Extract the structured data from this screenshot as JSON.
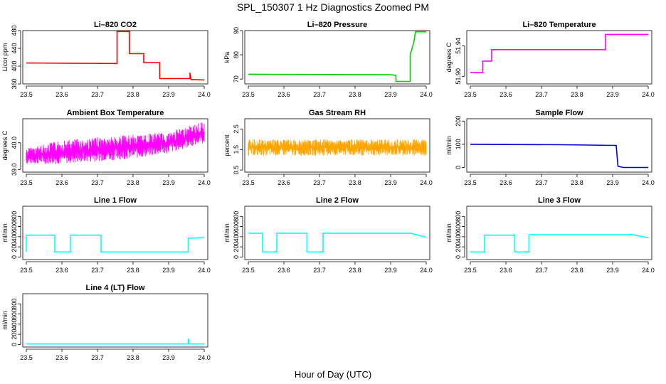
{
  "figure": {
    "title": "SPL_150307  1 Hz Diagnostics Zoomed PM",
    "xlabel": "Hour of Day (UTC)"
  },
  "chart_data": [
    {
      "type": "line",
      "title": "Li–820 CO2",
      "ylabel": "Licor ppm",
      "color": "#ff0000",
      "xlim": [
        23.5,
        24.0
      ],
      "ylim": [
        360,
        480
      ],
      "xticks": [
        "23.5",
        "23.6",
        "23.7",
        "23.8",
        "23.9",
        "24.0"
      ],
      "yticks": [
        "360",
        "400",
        "440",
        "480"
      ],
      "x": [
        23.5,
        23.755,
        23.755,
        23.79,
        23.79,
        23.83,
        23.83,
        23.875,
        23.875,
        23.96,
        23.96,
        23.963,
        23.963,
        24.0
      ],
      "y": [
        407,
        406,
        478,
        478,
        428,
        428,
        408,
        408,
        372,
        372,
        385,
        370,
        370,
        369
      ]
    },
    {
      "type": "line",
      "title": "Li–820 Pressure",
      "ylabel": "kPa",
      "color": "#00cc00",
      "xlim": [
        23.5,
        24.0
      ],
      "ylim": [
        68,
        90
      ],
      "xticks": [
        "23.5",
        "23.6",
        "23.7",
        "23.8",
        "23.9",
        "24.0"
      ],
      "yticks": [
        "70",
        "80",
        "90"
      ],
      "x": [
        23.5,
        23.9,
        23.915,
        23.915,
        23.955,
        23.955,
        23.965,
        23.97,
        24.0
      ],
      "y": [
        72,
        71.8,
        71.5,
        69,
        69,
        80,
        85,
        89.5,
        89.5
      ]
    },
    {
      "type": "line",
      "title": "Li–820 Temperature",
      "ylabel": "degrees C",
      "color": "#ff00ff",
      "xlim": [
        23.5,
        24.0
      ],
      "ylim": [
        51.89,
        51.96
      ],
      "xticks": [
        "23.5",
        "23.6",
        "23.7",
        "23.8",
        "23.9",
        "24.0"
      ],
      "yticks": [
        "51.90",
        "51.94"
      ],
      "x": [
        23.5,
        23.535,
        23.535,
        23.56,
        23.56,
        23.88,
        23.88,
        24.0
      ],
      "y": [
        51.905,
        51.905,
        51.92,
        51.92,
        51.935,
        51.935,
        51.955,
        51.955
      ]
    },
    {
      "type": "line",
      "title": "Ambient Box Temperature",
      "ylabel": "degrees C",
      "color": "#ff00ff",
      "xlim": [
        23.5,
        24.0
      ],
      "ylim": [
        38.9,
        40.9
      ],
      "xticks": [
        "23.5",
        "23.6",
        "23.7",
        "23.8",
        "23.9",
        "24.0"
      ],
      "yticks": [
        "39.0",
        "40.0"
      ],
      "x": [
        23.5,
        23.6,
        23.7,
        23.8,
        23.9,
        23.95,
        24.0
      ],
      "low": [
        39.2,
        39.2,
        39.3,
        39.4,
        39.6,
        39.8,
        40.0
      ],
      "high": [
        39.8,
        40.1,
        40.2,
        40.3,
        40.4,
        40.6,
        40.8
      ]
    },
    {
      "type": "line",
      "title": "Gas Stream RH",
      "ylabel": "percent",
      "color": "#ffa500",
      "xlim": [
        23.5,
        24.0
      ],
      "ylim": [
        0.4,
        3.0
      ],
      "xticks": [
        "23.5",
        "23.6",
        "23.7",
        "23.8",
        "23.9",
        "24.0"
      ],
      "yticks": [
        "0.5",
        "1.5",
        "2.5"
      ],
      "x": [
        23.5,
        24.0
      ],
      "low": [
        1.2,
        1.2
      ],
      "high": [
        2.0,
        2.0
      ]
    },
    {
      "type": "line",
      "title": "Sample Flow",
      "ylabel": "ml/min",
      "color": "#0000cc",
      "xlim": [
        23.5,
        24.0
      ],
      "ylim": [
        -20,
        210
      ],
      "xticks": [
        "23.5",
        "23.6",
        "23.7",
        "23.8",
        "23.9",
        "24.0"
      ],
      "yticks": [
        "0",
        "100",
        "200"
      ],
      "x": [
        23.5,
        23.75,
        23.91,
        23.915,
        23.93,
        24.0
      ],
      "y": [
        100,
        98,
        95,
        5,
        0,
        0
      ]
    },
    {
      "type": "line",
      "title": "Line 1 Flow",
      "ylabel": "ml/min",
      "color": "#00ffff",
      "xlim": [
        23.5,
        24.0
      ],
      "ylim": [
        -50,
        1000
      ],
      "xticks": [
        "23.5",
        "23.6",
        "23.7",
        "23.8",
        "23.9",
        "24.0"
      ],
      "yticks": [
        "0",
        "200",
        "400",
        "600",
        "800"
      ],
      "x": [
        23.5,
        23.5,
        23.58,
        23.58,
        23.625,
        23.625,
        23.71,
        23.71,
        23.955,
        23.955,
        24.0
      ],
      "y": [
        100,
        430,
        430,
        100,
        100,
        430,
        430,
        100,
        100,
        370,
        380
      ]
    },
    {
      "type": "line",
      "title": "Line 2 Flow",
      "ylabel": "ml/min",
      "color": "#00ffff",
      "xlim": [
        23.5,
        24.0
      ],
      "ylim": [
        -50,
        1000
      ],
      "xticks": [
        "23.5",
        "23.6",
        "23.7",
        "23.8",
        "23.9",
        "24.0"
      ],
      "yticks": [
        "0",
        "200",
        "400",
        "600",
        "800"
      ],
      "x": [
        23.5,
        23.54,
        23.54,
        23.58,
        23.58,
        23.665,
        23.665,
        23.71,
        23.71,
        23.955,
        24.0
      ],
      "y": [
        470,
        470,
        100,
        100,
        470,
        470,
        100,
        100,
        470,
        470,
        390
      ]
    },
    {
      "type": "line",
      "title": "Line 3 Flow",
      "ylabel": "ml/min",
      "color": "#00ffff",
      "xlim": [
        23.5,
        24.0
      ],
      "ylim": [
        -50,
        1000
      ],
      "xticks": [
        "23.5",
        "23.6",
        "23.7",
        "23.8",
        "23.9",
        "24.0"
      ],
      "yticks": [
        "0",
        "200",
        "400",
        "600",
        "800"
      ],
      "x": [
        23.5,
        23.5,
        23.54,
        23.54,
        23.625,
        23.625,
        23.665,
        23.665,
        23.955,
        24.0
      ],
      "y": [
        100,
        100,
        100,
        430,
        430,
        100,
        100,
        440,
        440,
        380
      ]
    },
    {
      "type": "line",
      "title": "Line 4 (LT) Flow",
      "ylabel": "ml/min",
      "color": "#00ffff",
      "xlim": [
        23.5,
        24.0
      ],
      "ylim": [
        -50,
        1000
      ],
      "xticks": [
        "23.5",
        "23.6",
        "23.7",
        "23.8",
        "23.9",
        "24.0"
      ],
      "yticks": [
        "0",
        "200",
        "400",
        "600",
        "800"
      ],
      "x": [
        23.5,
        23.955,
        23.955,
        23.957,
        23.957,
        24.0
      ],
      "y": [
        10,
        10,
        100,
        100,
        10,
        10
      ]
    }
  ]
}
